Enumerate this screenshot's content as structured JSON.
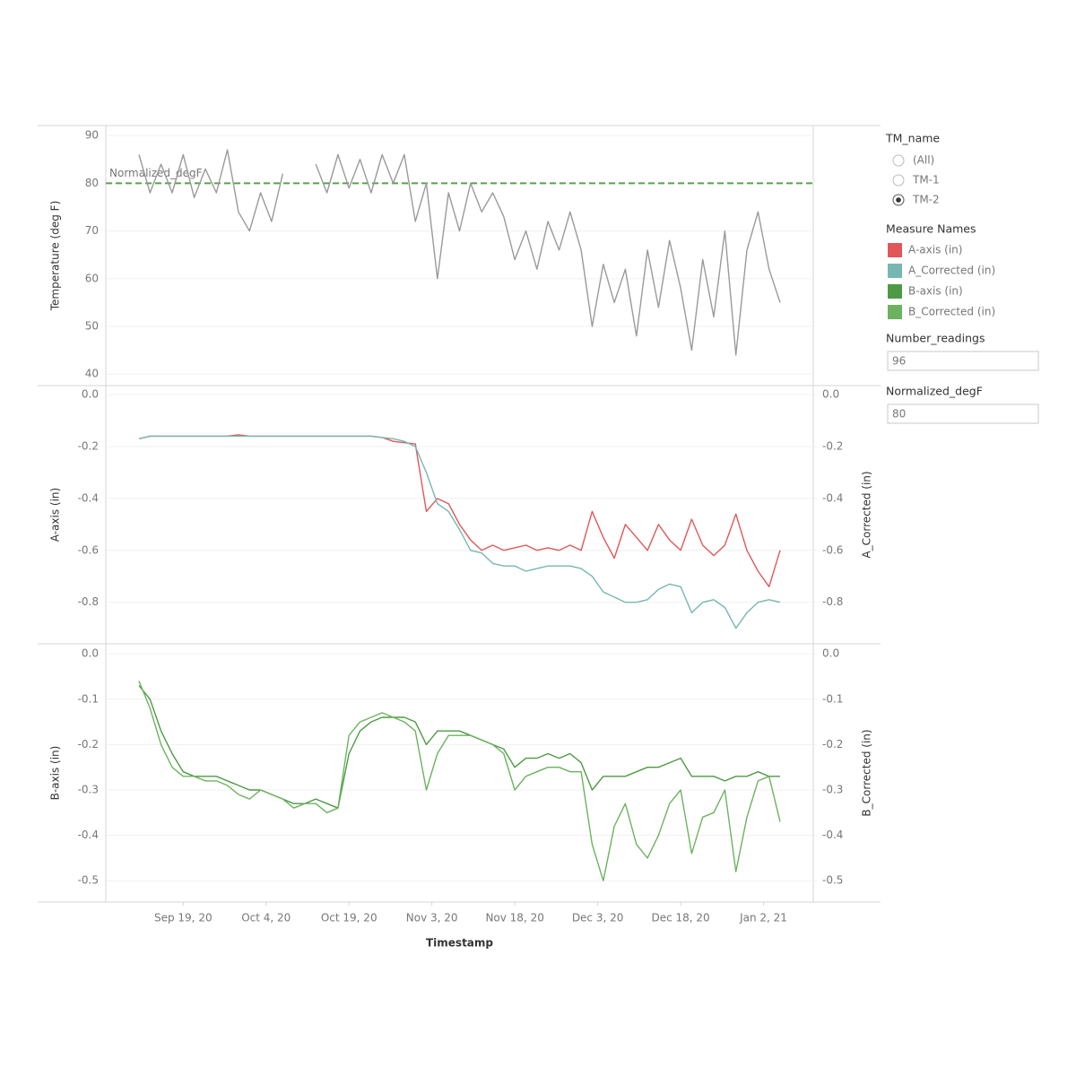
{
  "chart_data": [
    {
      "type": "line",
      "ylabel": "Temperature (deg F)",
      "color": "#9a9a9a",
      "x": [
        "2020-09-11",
        "2020-09-13",
        "2020-09-15",
        "2020-09-17",
        "2020-09-19",
        "2020-09-21",
        "2020-09-23",
        "2020-09-25",
        "2020-09-27",
        "2020-09-29",
        "2020-10-01",
        "2020-10-03",
        "2020-10-05",
        "2020-10-07",
        "2020-10-09",
        "2020-10-11",
        "2020-10-13",
        "2020-10-15",
        "2020-10-17",
        "2020-10-19",
        "2020-10-21",
        "2020-10-23",
        "2020-10-25",
        "2020-10-27",
        "2020-10-29",
        "2020-10-31",
        "2020-11-02",
        "2020-11-04",
        "2020-11-06",
        "2020-11-08",
        "2020-11-10",
        "2020-11-12",
        "2020-11-14",
        "2020-11-16",
        "2020-11-18",
        "2020-11-20",
        "2020-11-22",
        "2020-11-24",
        "2020-11-26",
        "2020-11-28",
        "2020-11-30",
        "2020-12-02",
        "2020-12-04",
        "2020-12-06",
        "2020-12-08",
        "2020-12-10",
        "2020-12-12",
        "2020-12-14",
        "2020-12-16",
        "2020-12-18",
        "2020-12-20",
        "2020-12-22",
        "2020-12-24",
        "2020-12-26",
        "2020-12-28",
        "2020-12-30",
        "2021-01-01",
        "2021-01-03",
        "2021-01-05"
      ],
      "values": [
        86,
        78,
        84,
        78,
        86,
        77,
        83,
        78,
        87,
        74,
        70,
        78,
        72,
        82,
        null,
        null,
        84,
        78,
        86,
        79,
        85,
        78,
        86,
        80,
        86,
        72,
        80,
        60,
        78,
        70,
        80,
        74,
        78,
        73,
        64,
        70,
        62,
        72,
        66,
        74,
        66,
        50,
        63,
        55,
        62,
        48,
        66,
        54,
        68,
        58,
        45,
        64,
        52,
        70,
        44,
        66,
        74,
        62,
        55
      ],
      "xlim": [
        "2020-09-05",
        "2021-01-11"
      ],
      "ylim": [
        37.6,
        92.1
      ],
      "yticks": [
        40,
        50,
        60,
        70,
        80,
        90
      ],
      "grid": true,
      "reference_line": {
        "label": "Normalized_degF",
        "value": 80,
        "color": "#59a14f"
      }
    },
    {
      "type": "line",
      "ylabel": "A-axis (in)",
      "y2label": "A_Corrected (in)",
      "x": [
        "2020-09-11",
        "2020-09-13",
        "2020-09-15",
        "2020-09-17",
        "2020-09-19",
        "2020-09-21",
        "2020-09-23",
        "2020-09-25",
        "2020-09-27",
        "2020-09-29",
        "2020-10-01",
        "2020-10-03",
        "2020-10-05",
        "2020-10-07",
        "2020-10-09",
        "2020-10-11",
        "2020-10-13",
        "2020-10-15",
        "2020-10-17",
        "2020-10-19",
        "2020-10-21",
        "2020-10-23",
        "2020-10-25",
        "2020-10-27",
        "2020-10-29",
        "2020-10-31",
        "2020-11-02",
        "2020-11-04",
        "2020-11-06",
        "2020-11-08",
        "2020-11-10",
        "2020-11-12",
        "2020-11-14",
        "2020-11-16",
        "2020-11-18",
        "2020-11-20",
        "2020-11-22",
        "2020-11-24",
        "2020-11-26",
        "2020-11-28",
        "2020-11-30",
        "2020-12-02",
        "2020-12-04",
        "2020-12-06",
        "2020-12-08",
        "2020-12-10",
        "2020-12-12",
        "2020-12-14",
        "2020-12-16",
        "2020-12-18",
        "2020-12-20",
        "2020-12-22",
        "2020-12-24",
        "2020-12-26",
        "2020-12-28",
        "2020-12-30",
        "2021-01-01",
        "2021-01-03",
        "2021-01-05"
      ],
      "series": [
        {
          "name": "A-axis (in)",
          "color": "#e15759",
          "values": [
            -0.17,
            -0.16,
            -0.16,
            -0.16,
            -0.16,
            -0.16,
            -0.16,
            -0.16,
            -0.16,
            -0.155,
            -0.16,
            -0.16,
            -0.16,
            -0.16,
            -0.16,
            -0.16,
            -0.16,
            -0.16,
            -0.16,
            -0.16,
            -0.16,
            -0.16,
            -0.165,
            -0.18,
            -0.185,
            -0.19,
            -0.45,
            -0.4,
            -0.42,
            -0.5,
            -0.56,
            -0.6,
            -0.58,
            -0.6,
            -0.59,
            -0.58,
            -0.6,
            -0.59,
            -0.6,
            -0.58,
            -0.6,
            -0.45,
            -0.55,
            -0.63,
            -0.5,
            -0.55,
            -0.6,
            -0.5,
            -0.56,
            -0.6,
            -0.48,
            -0.58,
            -0.62,
            -0.58,
            -0.46,
            -0.6,
            -0.68,
            -0.74,
            -0.6
          ]
        },
        {
          "name": "A_Corrected (in)",
          "color": "#76b7b2",
          "axis": "y2",
          "values": [
            -0.17,
            -0.16,
            -0.16,
            -0.16,
            -0.16,
            -0.16,
            -0.16,
            -0.16,
            -0.16,
            -0.16,
            -0.16,
            -0.16,
            -0.16,
            -0.16,
            -0.16,
            -0.16,
            -0.16,
            -0.16,
            -0.16,
            -0.16,
            -0.16,
            -0.16,
            -0.165,
            -0.17,
            -0.18,
            -0.2,
            -0.3,
            -0.42,
            -0.45,
            -0.52,
            -0.6,
            -0.61,
            -0.65,
            -0.66,
            -0.66,
            -0.68,
            -0.67,
            -0.66,
            -0.66,
            -0.66,
            -0.67,
            -0.7,
            -0.76,
            -0.78,
            -0.8,
            -0.8,
            -0.79,
            -0.75,
            -0.73,
            -0.74,
            -0.84,
            -0.8,
            -0.79,
            -0.82,
            -0.9,
            -0.84,
            -0.8,
            -0.79,
            -0.8
          ]
        }
      ],
      "xlim": [
        "2020-09-05",
        "2021-01-11"
      ],
      "ylim": [
        -0.96,
        0.035
      ],
      "yticks": [
        {
          "value": 0,
          "label": "0.0"
        },
        -0.2,
        -0.4,
        -0.6,
        -0.8
      ],
      "y2lim": [
        -0.96,
        0.035
      ],
      "y2ticks": [
        {
          "value": 0,
          "label": "0.0"
        },
        -0.2,
        -0.4,
        -0.6,
        -0.8
      ],
      "grid": true
    },
    {
      "type": "line",
      "ylabel": "B-axis (in)",
      "y2label": "B_Corrected (in)",
      "xlabel": "Timestamp",
      "x": [
        "2020-09-11",
        "2020-09-13",
        "2020-09-15",
        "2020-09-17",
        "2020-09-19",
        "2020-09-21",
        "2020-09-23",
        "2020-09-25",
        "2020-09-27",
        "2020-09-29",
        "2020-10-01",
        "2020-10-03",
        "2020-10-05",
        "2020-10-07",
        "2020-10-09",
        "2020-10-11",
        "2020-10-13",
        "2020-10-15",
        "2020-10-17",
        "2020-10-19",
        "2020-10-21",
        "2020-10-23",
        "2020-10-25",
        "2020-10-27",
        "2020-10-29",
        "2020-10-31",
        "2020-11-02",
        "2020-11-04",
        "2020-11-06",
        "2020-11-08",
        "2020-11-10",
        "2020-11-12",
        "2020-11-14",
        "2020-11-16",
        "2020-11-18",
        "2020-11-20",
        "2020-11-22",
        "2020-11-24",
        "2020-11-26",
        "2020-11-28",
        "2020-11-30",
        "2020-12-02",
        "2020-12-04",
        "2020-12-06",
        "2020-12-08",
        "2020-12-10",
        "2020-12-12",
        "2020-12-14",
        "2020-12-16",
        "2020-12-18",
        "2020-12-20",
        "2020-12-22",
        "2020-12-24",
        "2020-12-26",
        "2020-12-28",
        "2020-12-30",
        "2021-01-01",
        "2021-01-03",
        "2021-01-05"
      ],
      "series": [
        {
          "name": "B-axis (in)",
          "color": "#4e9a44",
          "values": [
            -0.07,
            -0.1,
            -0.17,
            -0.22,
            -0.26,
            -0.27,
            -0.27,
            -0.27,
            -0.28,
            -0.29,
            -0.3,
            -0.3,
            -0.31,
            -0.32,
            -0.33,
            -0.33,
            -0.32,
            -0.33,
            -0.34,
            -0.22,
            -0.17,
            -0.15,
            -0.14,
            -0.14,
            -0.14,
            -0.15,
            -0.2,
            -0.17,
            -0.17,
            -0.17,
            -0.18,
            -0.19,
            -0.2,
            -0.21,
            -0.25,
            -0.23,
            -0.23,
            -0.22,
            -0.23,
            -0.22,
            -0.24,
            -0.3,
            -0.27,
            -0.27,
            -0.27,
            -0.26,
            -0.25,
            -0.25,
            -0.24,
            -0.23,
            -0.27,
            -0.27,
            -0.27,
            -0.28,
            -0.27,
            -0.27,
            -0.26,
            -0.27,
            -0.27
          ]
        },
        {
          "name": "B_Corrected (in)",
          "color": "#6cb35f",
          "axis": "y2",
          "values": [
            -0.06,
            -0.12,
            -0.2,
            -0.25,
            -0.27,
            -0.27,
            -0.28,
            -0.28,
            -0.29,
            -0.31,
            -0.32,
            -0.3,
            -0.31,
            -0.32,
            -0.34,
            -0.33,
            -0.33,
            -0.35,
            -0.34,
            -0.18,
            -0.15,
            -0.14,
            -0.13,
            -0.14,
            -0.15,
            -0.17,
            -0.3,
            -0.22,
            -0.18,
            -0.18,
            -0.18,
            -0.19,
            -0.2,
            -0.22,
            -0.3,
            -0.27,
            -0.26,
            -0.25,
            -0.25,
            -0.26,
            -0.26,
            -0.42,
            -0.5,
            -0.38,
            -0.33,
            -0.42,
            -0.45,
            -0.4,
            -0.33,
            -0.3,
            -0.44,
            -0.36,
            -0.35,
            -0.3,
            -0.48,
            -0.36,
            -0.28,
            -0.27,
            -0.37
          ]
        }
      ],
      "xlim": [
        "2020-09-05",
        "2021-01-11"
      ],
      "xticks": [
        {
          "value": "2020-09-19",
          "label": "Sep 19, 20"
        },
        {
          "value": "2020-10-04",
          "label": "Oct 4, 20"
        },
        {
          "value": "2020-10-19",
          "label": "Oct 19, 20"
        },
        {
          "value": "2020-11-03",
          "label": "Nov 3, 20"
        },
        {
          "value": "2020-11-18",
          "label": "Nov 18, 20"
        },
        {
          "value": "2020-12-03",
          "label": "Dec 3, 20"
        },
        {
          "value": "2020-12-18",
          "label": "Dec 18, 20"
        },
        {
          "value": "2021-01-02",
          "label": "Jan 2, 21"
        }
      ],
      "ylim": [
        -0.547,
        0.022
      ],
      "yticks": [
        {
          "value": 0,
          "label": "0.0"
        },
        -0.1,
        -0.2,
        -0.3,
        -0.4,
        -0.5
      ],
      "y2lim": [
        -0.547,
        0.022
      ],
      "y2ticks": [
        {
          "value": 0,
          "label": "0.0"
        },
        -0.1,
        -0.2,
        -0.3,
        -0.4,
        -0.5
      ],
      "grid": true
    }
  ],
  "controls": {
    "tm_name": {
      "title": "TM_name",
      "options": [
        "(All)",
        "TM-1",
        "TM-2"
      ],
      "selected": "TM-2"
    },
    "measure_names_title": "Measure Names",
    "number_readings": {
      "title": "Number_readings",
      "value": "96"
    },
    "normalized_degF": {
      "title": "Normalized_degF",
      "value": "80"
    }
  }
}
